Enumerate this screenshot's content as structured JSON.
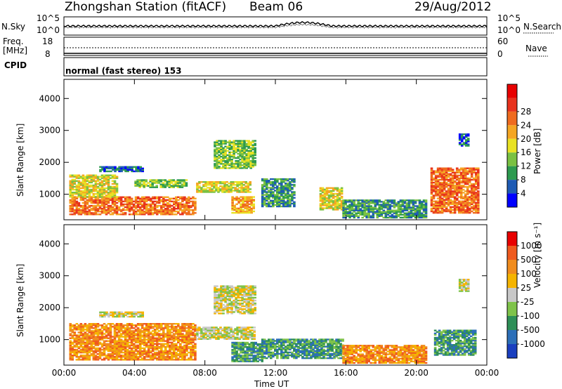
{
  "header": {
    "station": "Zhongshan Station (fitACF)",
    "beam": "Beam 06",
    "date": "29/Aug/2012"
  },
  "status_panels": {
    "nsky_label": "N.Sky",
    "nsearch_label": "N.Search",
    "freq_label": "Freq.",
    "freq_unit": "[MHz]",
    "nave_label": "Nave",
    "cpid_label": "CPID",
    "cpid_text": "normal (fast stereo) 153",
    "noise_ticks_left": [
      "10^5",
      "10^0"
    ],
    "noise_ticks_right": [
      "10^5",
      "10^0"
    ],
    "freq_ticks": [
      "18",
      "8"
    ],
    "nave_ticks": [
      "60",
      "0"
    ]
  },
  "colors": {
    "power_scale": [
      "#0000ff",
      "#1e5bb4",
      "#2d9a4f",
      "#7ac142",
      "#e9e223",
      "#f5a623",
      "#ef6b1f",
      "#e8321d",
      "#e80000"
    ],
    "velocity_scale": [
      "#1a3fbf",
      "#2c6fb8",
      "#2e8f57",
      "#7fc34a",
      "#c8c8c8",
      "#f5b400",
      "#f08c1e",
      "#ef5a1e",
      "#e80000"
    ]
  },
  "chart_data": [
    {
      "type": "heatmap",
      "name": "power",
      "xlabel": "",
      "ylabel": "Slant Range [km]",
      "x_ticks": [
        "00:00",
        "04:00",
        "08:00",
        "12:00",
        "16:00",
        "20:00",
        "00:00"
      ],
      "y_ticks": [
        1000,
        2000,
        3000,
        4000
      ],
      "ylim": [
        200,
        4600
      ],
      "xlim_hours": [
        0,
        24
      ],
      "colorbar": {
        "label": "Power [dB]",
        "ticks": [
          4,
          8,
          12,
          16,
          20,
          24,
          28
        ]
      },
      "regions": [
        {
          "t0": 0.3,
          "t1": 7.5,
          "r0": 350,
          "r1": 900,
          "level": 6
        },
        {
          "t0": 0.3,
          "t1": 3.0,
          "r0": 900,
          "r1": 1600,
          "level": 4
        },
        {
          "t0": 2.0,
          "t1": 4.5,
          "r0": 1700,
          "r1": 1850,
          "level": 1
        },
        {
          "t0": 4.0,
          "t1": 7.0,
          "r0": 1200,
          "r1": 1450,
          "level": 3
        },
        {
          "t0": 7.5,
          "t1": 10.5,
          "r0": 1050,
          "r1": 1400,
          "level": 4
        },
        {
          "t0": 8.5,
          "t1": 10.8,
          "r0": 1800,
          "r1": 2700,
          "level": 3
        },
        {
          "t0": 9.5,
          "t1": 10.8,
          "r0": 400,
          "r1": 900,
          "level": 5
        },
        {
          "t0": 11.2,
          "t1": 13.0,
          "r0": 600,
          "r1": 1500,
          "level": 2
        },
        {
          "t0": 14.5,
          "t1": 15.8,
          "r0": 500,
          "r1": 1200,
          "level": 4
        },
        {
          "t0": 15.8,
          "t1": 20.5,
          "r0": 250,
          "r1": 800,
          "level": 2
        },
        {
          "t0": 20.8,
          "t1": 23.5,
          "r0": 400,
          "r1": 1800,
          "level": 6
        },
        {
          "t0": 22.4,
          "t1": 23.0,
          "r0": 2500,
          "r1": 2900,
          "level": 1
        }
      ]
    },
    {
      "type": "heatmap",
      "name": "velocity",
      "xlabel": "Time UT",
      "ylabel": "Slant Range [km]",
      "x_ticks": [
        "00:00",
        "04:00",
        "08:00",
        "12:00",
        "16:00",
        "20:00",
        "00:00"
      ],
      "y_ticks": [
        1000,
        2000,
        3000,
        4000
      ],
      "ylim": [
        200,
        4600
      ],
      "xlim_hours": [
        0,
        24
      ],
      "colorbar": {
        "label": "Velocity [m s⁻¹]",
        "ticks": [
          "1000",
          "500",
          "100",
          "25",
          "-25",
          "-100",
          "-500",
          "-1000"
        ]
      },
      "regions": [
        {
          "t0": 0.3,
          "t1": 7.5,
          "r0": 350,
          "r1": 1500,
          "level": 6
        },
        {
          "t0": 2.0,
          "t1": 4.5,
          "r0": 1700,
          "r1": 1850,
          "level": 4
        },
        {
          "t0": 7.5,
          "t1": 10.8,
          "r0": 1000,
          "r1": 1400,
          "level": 4
        },
        {
          "t0": 8.5,
          "t1": 10.8,
          "r0": 1800,
          "r1": 2700,
          "level": 4
        },
        {
          "t0": 9.5,
          "t1": 11.2,
          "r0": 300,
          "r1": 900,
          "level": 2
        },
        {
          "t0": 11.2,
          "t1": 15.8,
          "r0": 400,
          "r1": 1000,
          "level": 2
        },
        {
          "t0": 15.8,
          "t1": 20.5,
          "r0": 250,
          "r1": 800,
          "level": 6
        },
        {
          "t0": 21.0,
          "t1": 23.3,
          "r0": 500,
          "r1": 1300,
          "level": 2
        },
        {
          "t0": 22.4,
          "t1": 23.0,
          "r0": 2500,
          "r1": 2900,
          "level": 4
        }
      ]
    }
  ]
}
